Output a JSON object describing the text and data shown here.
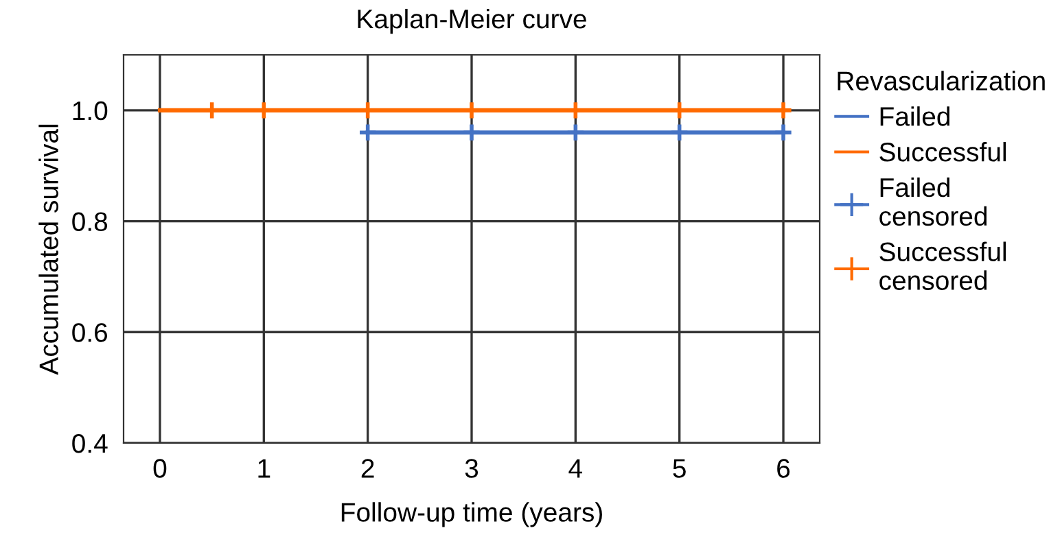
{
  "chart_data": {
    "type": "step",
    "title": "Kaplan-Meier curve",
    "xlabel": "Follow-up time (years)",
    "ylabel": "Accumulated survival",
    "legend_title": "Revascularization",
    "series": [
      {
        "name": "Failed",
        "color": "#4472c4",
        "x": [
          2,
          6
        ],
        "values": [
          0.96,
          0.96
        ]
      },
      {
        "name": "Successful",
        "color": "#ff6a00",
        "x": [
          0,
          6
        ],
        "values": [
          1.0,
          1.0
        ]
      },
      {
        "name": "Failed\ncensored",
        "type": "scatter",
        "marker": "cross",
        "color": "#4472c4",
        "x": [
          2,
          3,
          4,
          5,
          6
        ],
        "values": [
          0.96,
          0.96,
          0.96,
          0.96,
          0.96
        ]
      },
      {
        "name": "Successful\ncensored",
        "type": "scatter",
        "marker": "cross",
        "color": "#ff6a00",
        "x": [
          0.5,
          1,
          2,
          3,
          4,
          5,
          6
        ],
        "values": [
          1.0,
          1.0,
          1.0,
          1.0,
          1.0,
          1.0,
          1.0
        ]
      }
    ],
    "xlim": [
      -0.35,
      6.35
    ],
    "xticks": [
      0,
      1,
      2,
      3,
      4,
      5,
      6
    ],
    "ylim": [
      0.4,
      1.1
    ],
    "yticks": [
      {
        "value": 0.4,
        "label": "0.4"
      },
      {
        "value": 0.6,
        "label": "0.6"
      },
      {
        "value": 0.8,
        "label": "0.8"
      },
      {
        "value": 1.0,
        "label": "1.0"
      }
    ],
    "grid": true,
    "legend": "right"
  }
}
